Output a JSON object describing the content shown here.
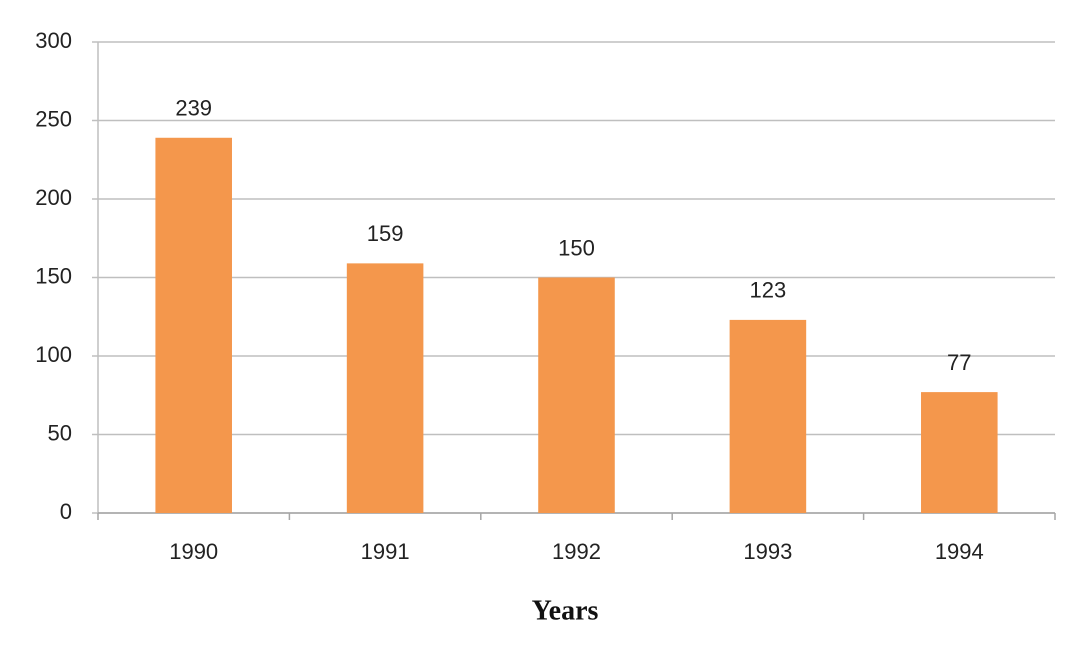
{
  "chart_data": {
    "type": "bar",
    "x_label": "Years",
    "categories": [
      "1990",
      "1991",
      "1992",
      "1993",
      "1994"
    ],
    "values": [
      239,
      159,
      150,
      123,
      77
    ],
    "color": "#f4974c",
    "ylim": [
      0,
      300
    ],
    "yticks": [
      0,
      50,
      100,
      150,
      200,
      250,
      300
    ],
    "grid": true
  }
}
